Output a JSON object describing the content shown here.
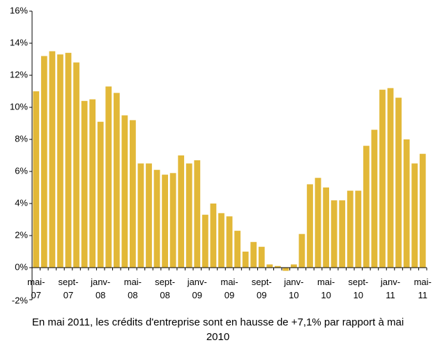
{
  "chart_data": {
    "type": "bar",
    "caption": "En mai 2011, les crédits d'entreprise sont en hausse de +7,1% par rapport à mai 2010",
    "categories": [
      "mai-07",
      null,
      null,
      null,
      "sept-07",
      null,
      null,
      null,
      "janv-08",
      null,
      null,
      null,
      "mai-08",
      null,
      null,
      null,
      "sept-08",
      null,
      null,
      null,
      "janv-09",
      null,
      null,
      null,
      "mai-09",
      null,
      null,
      null,
      "sept-09",
      null,
      null,
      null,
      "janv-10",
      null,
      null,
      null,
      "mai-10",
      null,
      null,
      null,
      "sept-10",
      null,
      null,
      null,
      "janv-11",
      null,
      null,
      null,
      "mai-11"
    ],
    "values": [
      11.0,
      13.2,
      13.5,
      13.3,
      13.4,
      12.8,
      10.4,
      10.5,
      9.1,
      11.3,
      10.9,
      9.5,
      9.2,
      6.5,
      6.5,
      6.1,
      5.8,
      5.9,
      7.0,
      6.5,
      6.7,
      3.3,
      4.0,
      3.4,
      3.2,
      2.3,
      1.0,
      1.6,
      1.3,
      0.2,
      0.1,
      -0.2,
      0.2,
      2.1,
      5.2,
      5.6,
      5.0,
      4.2,
      4.2,
      4.8,
      4.8,
      7.6,
      8.6,
      11.1,
      11.2,
      10.6,
      8.0,
      6.5,
      7.1
    ],
    "color": "#e2b838",
    "ylim": [
      -2,
      16
    ],
    "yticks": [
      {
        "value": -2,
        "label": "-2%"
      },
      {
        "value": 0,
        "label": "0%"
      },
      {
        "value": 2,
        "label": "2%"
      },
      {
        "value": 4,
        "label": "4%"
      },
      {
        "value": 6,
        "label": "6%"
      },
      {
        "value": 8,
        "label": "8%"
      },
      {
        "value": 10,
        "label": "10%"
      },
      {
        "value": 12,
        "label": "12%"
      },
      {
        "value": 14,
        "label": "14%"
      },
      {
        "value": 16,
        "label": "16%"
      }
    ],
    "grid": false
  }
}
